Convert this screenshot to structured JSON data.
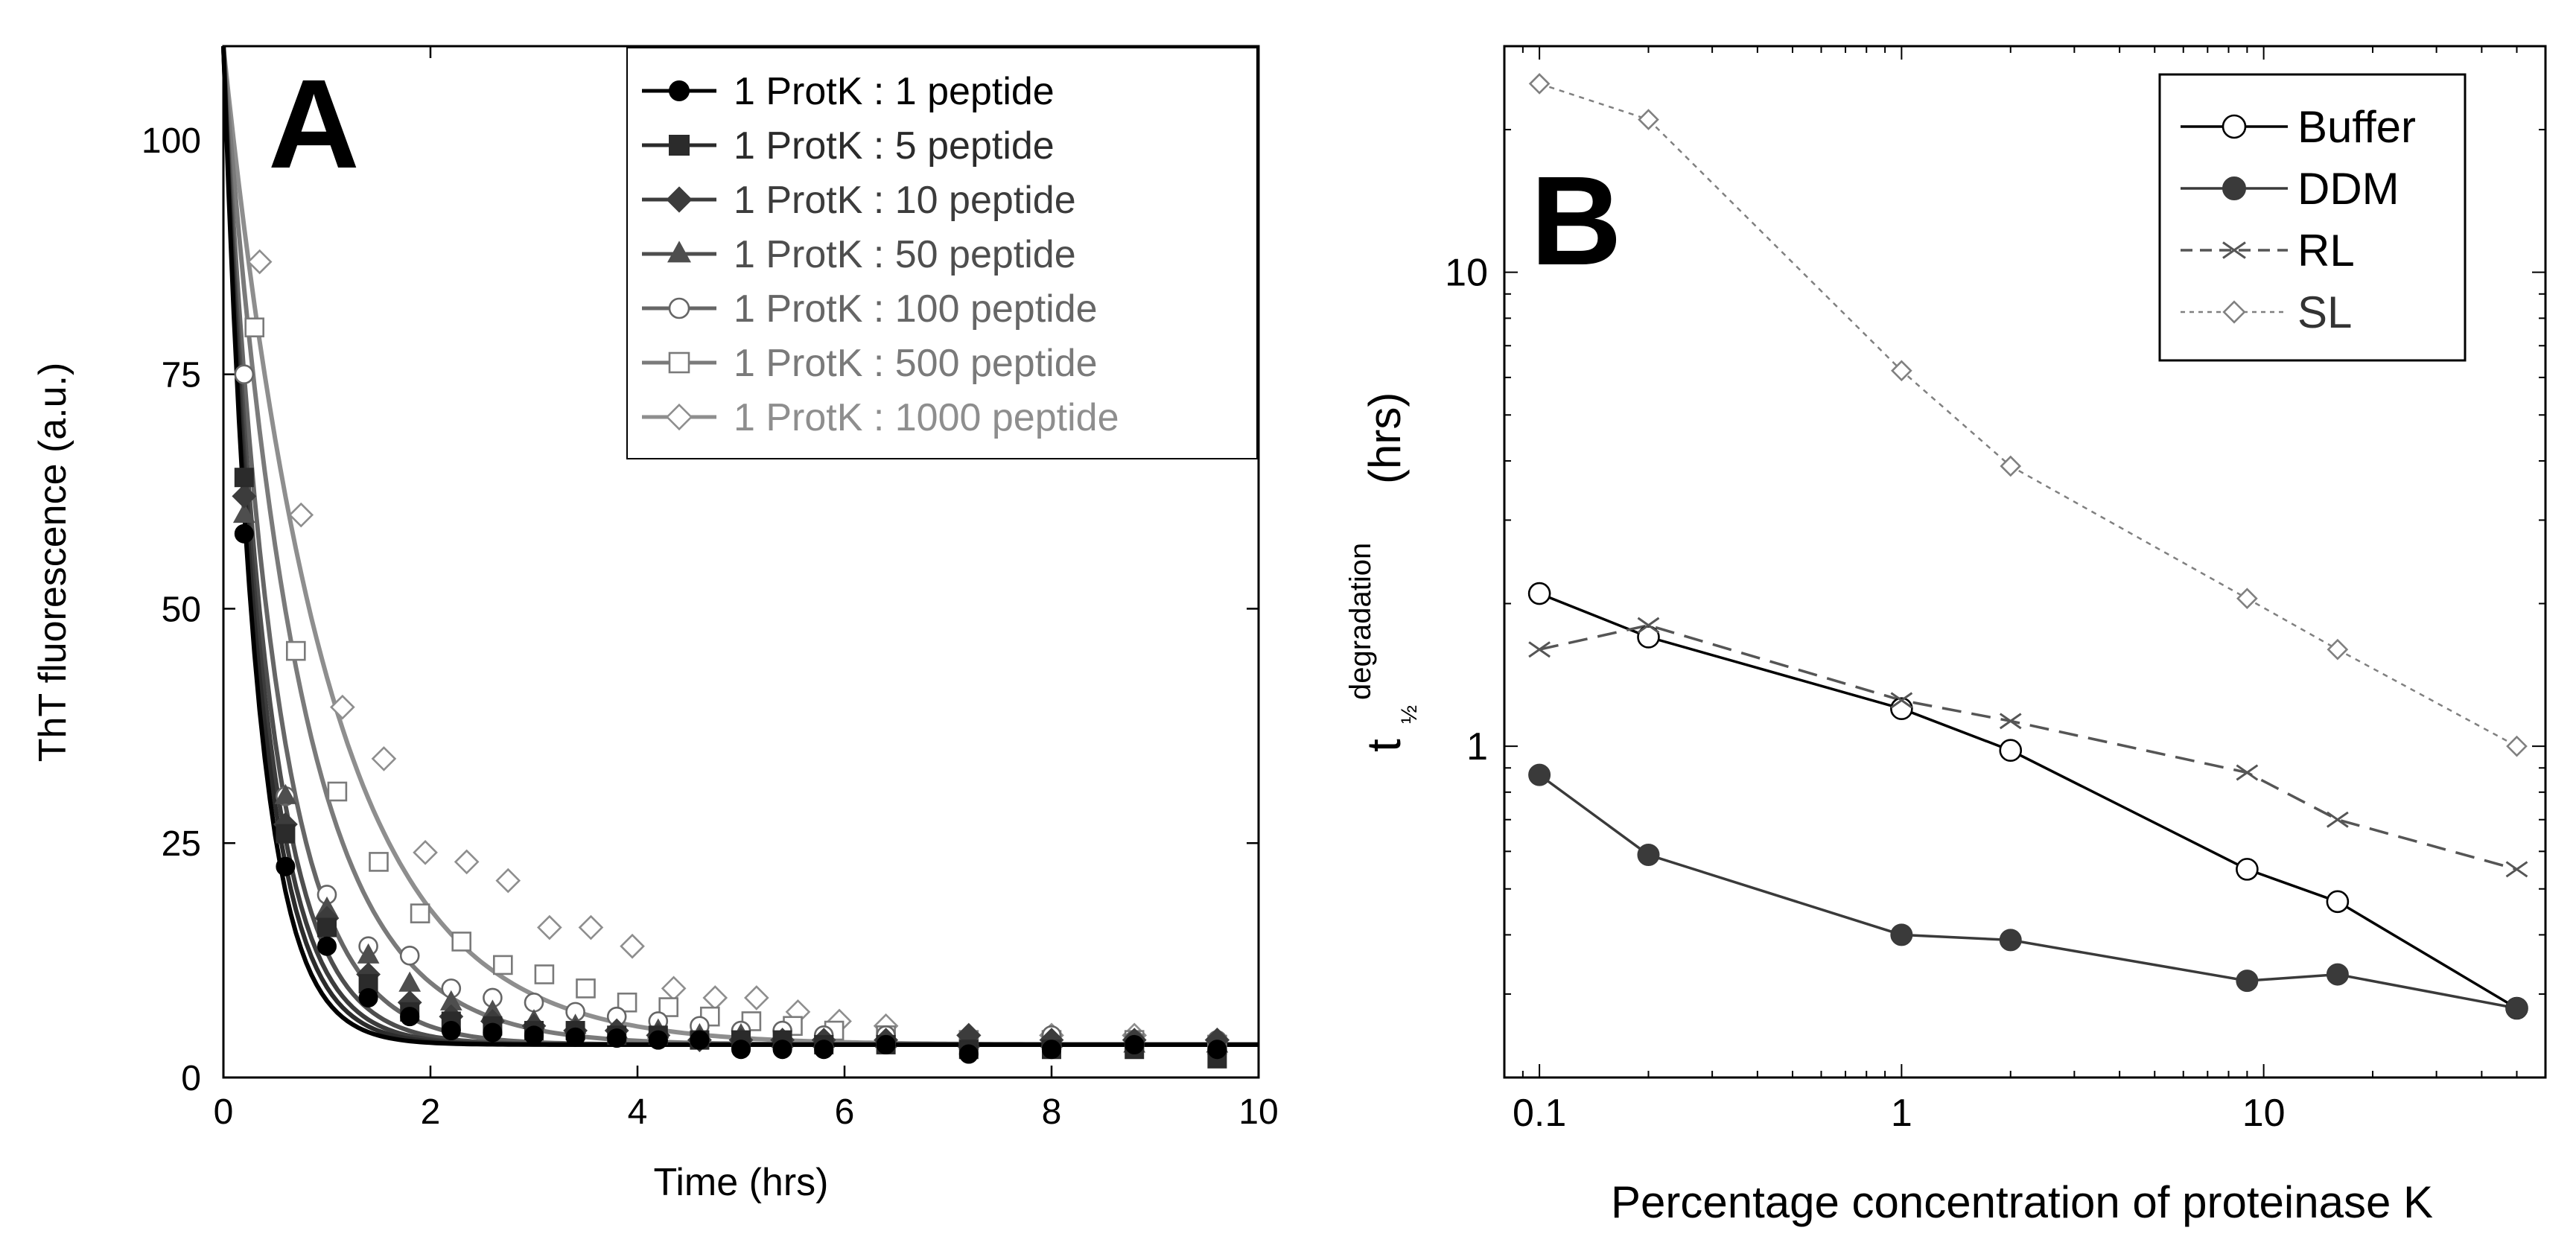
{
  "figure": {
    "background": "#ffffff"
  },
  "chart_data": [
    {
      "panel": "A",
      "type": "scatter",
      "panel_label": "A",
      "xlabel": "Time (hrs)",
      "ylabel": "ThT fluorescence (a.u.)",
      "xlim": [
        0,
        10
      ],
      "ylim": [
        0,
        110
      ],
      "xticks": [
        0,
        2,
        4,
        6,
        8,
        10
      ],
      "yticks": [
        0,
        25,
        50,
        75,
        100
      ],
      "xtick_labels": [
        "0",
        "2",
        "4",
        "6",
        "8",
        "10"
      ],
      "ytick_labels": [
        "0",
        "25",
        "50",
        "75",
        "100"
      ],
      "legend_position": "top-right",
      "fit_model": "exponential decay to plateau",
      "series": [
        {
          "name": "1 ProtK : 1 peptide",
          "marker": "circle-filled",
          "color": "#000000",
          "fit": {
            "y0": 110,
            "plateau": 3.5,
            "tau": 0.32
          },
          "x": [
            0.2,
            0.6,
            1.0,
            1.4,
            1.8,
            2.2,
            2.6,
            3.0,
            3.4,
            3.8,
            4.2,
            4.6,
            5.0,
            5.4,
            5.8,
            6.4,
            7.2,
            8.0,
            8.8,
            9.6
          ],
          "y": [
            58,
            22.5,
            14,
            8.5,
            6.5,
            5,
            4.8,
            4.5,
            4.3,
            4.2,
            4,
            4,
            3,
            3,
            3,
            3.5,
            2.5,
            3,
            3.5,
            3
          ]
        },
        {
          "name": "1 ProtK : 5 peptide",
          "marker": "square-filled",
          "color": "#2b2b2b",
          "fit": {
            "y0": 110,
            "plateau": 3.5,
            "tau": 0.35
          },
          "x": [
            0.2,
            0.6,
            1.0,
            1.4,
            1.8,
            2.2,
            2.6,
            3.0,
            3.4,
            3.8,
            4.2,
            4.6,
            5.0,
            5.4,
            5.8,
            6.4,
            7.2,
            8.0,
            8.8,
            9.6
          ],
          "y": [
            64,
            26,
            16,
            10,
            7,
            6,
            5.5,
            5,
            5,
            4.5,
            4.5,
            4,
            4,
            4,
            3.5,
            3.5,
            3,
            3,
            3,
            2
          ]
        },
        {
          "name": "1 ProtK : 10 peptide",
          "marker": "diamond-filled",
          "color": "#3c3c3c",
          "fit": {
            "y0": 110,
            "plateau": 3.5,
            "tau": 0.38
          },
          "x": [
            0.2,
            0.6,
            1.0,
            1.4,
            1.8,
            2.2,
            2.6,
            3.0,
            3.4,
            3.8,
            4.2,
            4.6,
            5.0,
            5.4,
            5.8,
            6.4,
            7.2,
            8.0,
            8.8,
            9.6
          ],
          "y": [
            62,
            27,
            17,
            11,
            8,
            6.5,
            6,
            5.5,
            5,
            5,
            4.5,
            4,
            4,
            4,
            4,
            4,
            4.5,
            4,
            4,
            4
          ]
        },
        {
          "name": "1 ProtK : 50 peptide",
          "marker": "triangle-filled",
          "color": "#4e4e4e",
          "fit": {
            "y0": 110,
            "plateau": 3.5,
            "tau": 0.42
          },
          "x": [
            0.2,
            0.6,
            1.0,
            1.4,
            1.8,
            2.2,
            2.6,
            3.0,
            3.4,
            3.8,
            4.2,
            4.6,
            5.0,
            5.4,
            5.8,
            6.4,
            7.2,
            8.0,
            8.8,
            9.6
          ],
          "y": [
            60,
            30,
            18,
            13,
            10,
            8,
            7,
            6,
            5.5,
            5,
            5,
            4.5,
            4.5,
            4,
            4,
            4,
            4,
            4,
            3.5,
            3.5
          ]
        },
        {
          "name": "1 ProtK : 100 peptide",
          "marker": "circle-open",
          "color": "#666666",
          "fit": {
            "y0": 110,
            "plateau": 3.5,
            "tau": 0.5
          },
          "x": [
            0.2,
            0.6,
            1.0,
            1.4,
            1.8,
            2.2,
            2.6,
            3.0,
            3.4,
            3.8,
            4.2,
            4.6,
            5.0,
            5.4,
            5.8,
            6.4,
            7.2,
            8.0,
            8.8,
            9.6
          ],
          "y": [
            75,
            30,
            19.5,
            14,
            13,
            9.5,
            8.5,
            8,
            7,
            6.5,
            6,
            5.5,
            5,
            5,
            4.5,
            4.5,
            4,
            4.5,
            4,
            4
          ]
        },
        {
          "name": "1 ProtK : 500 peptide",
          "marker": "square-open",
          "color": "#7a7a7a",
          "fit": {
            "y0": 110,
            "plateau": 3.5,
            "tau": 0.72
          },
          "x": [
            0.3,
            0.7,
            1.1,
            1.5,
            1.9,
            2.3,
            2.7,
            3.1,
            3.5,
            3.9,
            4.3,
            4.7,
            5.1,
            5.5,
            5.9,
            6.4,
            7.2,
            8.0,
            8.8,
            9.6
          ],
          "y": [
            80,
            45.5,
            30.5,
            23,
            17.5,
            14.5,
            12,
            11,
            9.5,
            8,
            7.5,
            6.5,
            6,
            5.5,
            5,
            4.5,
            4,
            4,
            4,
            3.5
          ]
        },
        {
          "name": "1 ProtK : 1000 peptide",
          "marker": "diamond-open",
          "color": "#8e8e8e",
          "fit": {
            "y0": 110,
            "plateau": 3.5,
            "tau": 1.0
          },
          "x": [
            0.35,
            0.75,
            1.15,
            1.55,
            1.95,
            2.35,
            2.75,
            3.15,
            3.55,
            3.95,
            4.35,
            4.75,
            5.15,
            5.55,
            5.95,
            6.4,
            7.2,
            8.0,
            8.8,
            9.6
          ],
          "y": [
            87,
            60,
            39.5,
            34,
            24,
            23,
            21,
            16,
            16,
            14,
            9.5,
            8.5,
            8.5,
            7,
            6,
            5.5,
            4.5,
            4.5,
            4.5,
            4
          ]
        }
      ]
    },
    {
      "panel": "B",
      "type": "line",
      "panel_label": "B",
      "xlabel": "Percentage concentration of proteinase K",
      "ylabel": "t",
      "ylabel_subscript": "½",
      "ylabel_superscript": "degradation",
      "ylabel_unit": "(hrs)",
      "xscale": "log",
      "yscale": "log",
      "xlim": [
        0.08,
        60
      ],
      "ylim": [
        0.2,
        30
      ],
      "xticks": [
        0.1,
        1,
        10
      ],
      "yticks": [
        1,
        10
      ],
      "xtick_labels": [
        "0.1",
        "1",
        "10"
      ],
      "ytick_labels": [
        "1",
        "10"
      ],
      "legend_position": "top-right",
      "series": [
        {
          "name": "Buffer",
          "marker": "circle-open",
          "line": "solid",
          "color": "#000000",
          "x": [
            0.1,
            0.2,
            1,
            2,
            9,
            16,
            50
          ],
          "y": [
            2.1,
            1.7,
            1.2,
            0.98,
            0.55,
            0.47,
            0.28
          ]
        },
        {
          "name": "DDM",
          "marker": "circle-filled",
          "line": "solid",
          "color": "#3a3a3a",
          "x": [
            0.1,
            0.2,
            1,
            2,
            9,
            16,
            50
          ],
          "y": [
            0.87,
            0.59,
            0.4,
            0.39,
            0.32,
            0.33,
            0.28
          ]
        },
        {
          "name": "RL",
          "marker": "x",
          "line": "dashed",
          "color": "#555555",
          "x": [
            0.1,
            0.2,
            1,
            2,
            9,
            16,
            50
          ],
          "y": [
            1.6,
            1.8,
            1.25,
            1.13,
            0.88,
            0.7,
            0.55
          ]
        },
        {
          "name": "SL",
          "marker": "diamond-open",
          "line": "dotted",
          "color": "#808080",
          "x": [
            0.1,
            0.2,
            1,
            2,
            9,
            16,
            50
          ],
          "y": [
            25,
            21,
            6.2,
            3.9,
            2.05,
            1.6,
            1.0
          ]
        }
      ]
    }
  ]
}
